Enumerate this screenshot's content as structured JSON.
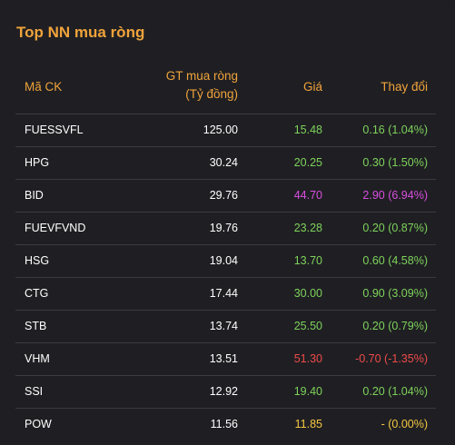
{
  "title": "Top NN mua ròng",
  "header": {
    "code": "Mã CK",
    "value_line1": "GT mua ròng",
    "value_line2": "(Tỷ đồng)",
    "price": "Giá",
    "change": "Thay đổi"
  },
  "colors": {
    "up": "#7ed25b",
    "ceiling": "#d94ee0",
    "down": "#f04a4a",
    "reference": "#f5c842",
    "accent": "#f0a33b"
  },
  "rows": [
    {
      "code": "FUESSVFL",
      "value": "125.00",
      "price": "15.48",
      "change": "0.16 (1.04%)",
      "status": "up"
    },
    {
      "code": "HPG",
      "value": "30.24",
      "price": "20.25",
      "change": "0.30 (1.50%)",
      "status": "up"
    },
    {
      "code": "BID",
      "value": "29.76",
      "price": "44.70",
      "change": "2.90 (6.94%)",
      "status": "ceiling"
    },
    {
      "code": "FUEVFVND",
      "value": "19.76",
      "price": "23.28",
      "change": "0.20 (0.87%)",
      "status": "up"
    },
    {
      "code": "HSG",
      "value": "19.04",
      "price": "13.70",
      "change": "0.60 (4.58%)",
      "status": "up"
    },
    {
      "code": "CTG",
      "value": "17.44",
      "price": "30.00",
      "change": "0.90 (3.09%)",
      "status": "up"
    },
    {
      "code": "STB",
      "value": "13.74",
      "price": "25.50",
      "change": "0.20 (0.79%)",
      "status": "up"
    },
    {
      "code": "VHM",
      "value": "13.51",
      "price": "51.30",
      "change": "-0.70 (-1.35%)",
      "status": "down"
    },
    {
      "code": "SSI",
      "value": "12.92",
      "price": "19.40",
      "change": "0.20 (1.04%)",
      "status": "up"
    },
    {
      "code": "POW",
      "value": "11.56",
      "price": "11.85",
      "change": "- (0.00%)",
      "status": "reference"
    }
  ]
}
